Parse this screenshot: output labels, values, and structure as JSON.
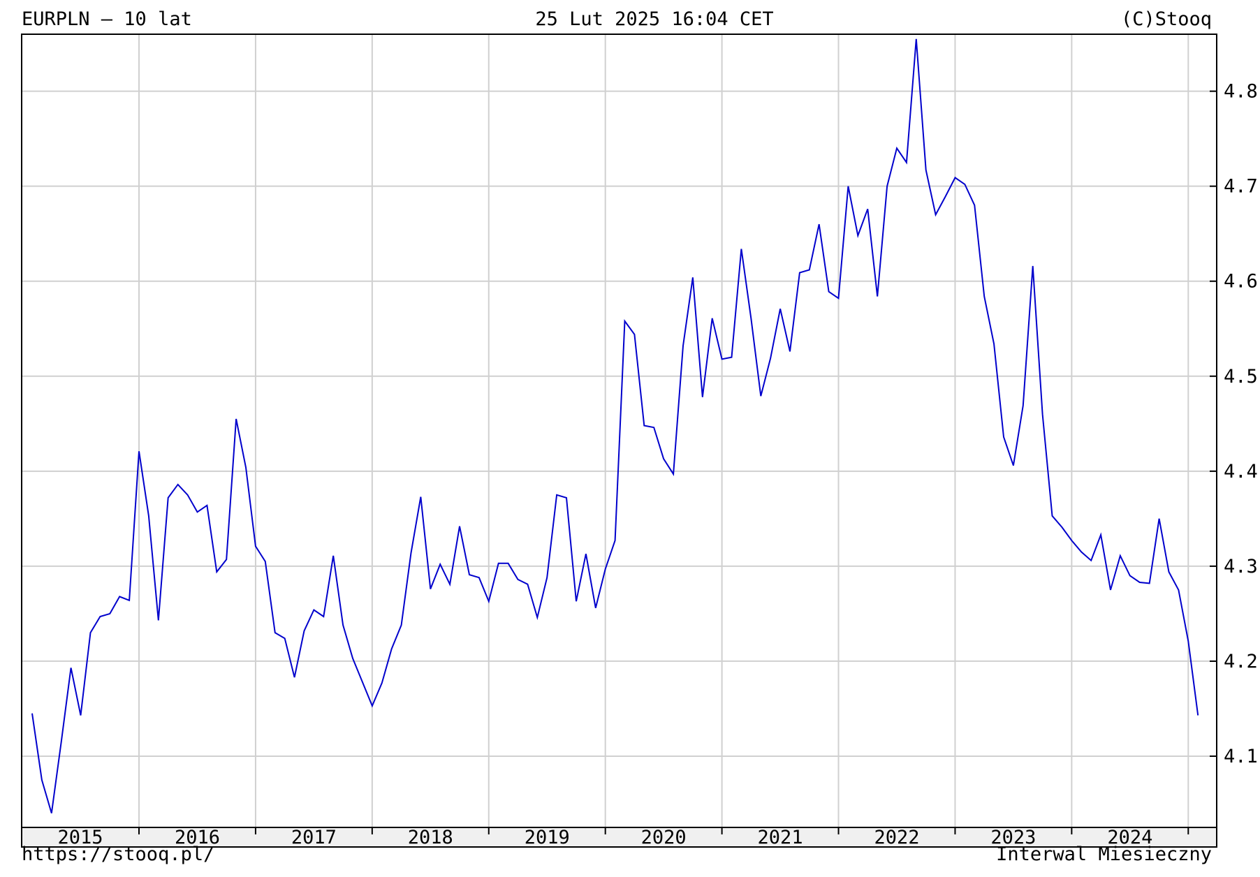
{
  "header": {
    "left": "EURPLN – 10 lat",
    "center": "25 Lut 2025 16:04 CET",
    "right": "(C)Stooq"
  },
  "footer": {
    "left": "https://stooq.pl/",
    "right": "Interwal Miesieczny"
  },
  "colors": {
    "line": "#0000cc",
    "grid": "#d0d0d0",
    "frame": "#000000",
    "xaxis_band": "#f0f0f0"
  },
  "chart_data": {
    "type": "line",
    "title": "EURPLN – 10 lat",
    "xlabel": "",
    "ylabel": "",
    "ylim": [
      4.025,
      4.86
    ],
    "y_ticks": [
      "4.1",
      "4.2",
      "4.3",
      "4.4",
      "4.5",
      "4.6",
      "4.7",
      "4.8"
    ],
    "x_ticks": [
      "2015",
      "2016",
      "2017",
      "2018",
      "2019",
      "2020",
      "2021",
      "2022",
      "2023",
      "2024"
    ],
    "grid": true,
    "y_axis_side": "right",
    "series": [
      {
        "values": [
          4.145,
          4.075,
          4.04,
          4.115,
          4.193,
          4.143,
          4.23,
          4.247,
          4.25,
          4.268,
          4.264,
          4.421,
          4.353,
          4.243,
          4.372,
          4.386,
          4.375,
          4.357,
          4.364,
          4.294,
          4.307,
          4.455,
          4.404,
          4.321,
          4.305,
          4.23,
          4.224,
          4.183,
          4.232,
          4.254,
          4.247,
          4.311,
          4.238,
          4.203,
          4.178,
          4.153,
          4.177,
          4.213,
          4.238,
          4.314,
          4.373,
          4.276,
          4.302,
          4.281,
          4.342,
          4.291,
          4.288,
          4.263,
          4.303,
          4.303,
          4.286,
          4.281,
          4.246,
          4.288,
          4.375,
          4.372,
          4.263,
          4.313,
          4.256,
          4.297,
          4.327,
          4.558,
          4.544,
          4.448,
          4.446,
          4.413,
          4.397,
          4.532,
          4.604,
          4.478,
          4.561,
          4.518,
          4.52,
          4.634,
          4.561,
          4.479,
          4.519,
          4.571,
          4.526,
          4.609,
          4.612,
          4.66,
          4.589,
          4.582,
          4.7,
          4.648,
          4.676,
          4.584,
          4.7,
          4.74,
          4.725,
          4.855,
          4.717,
          4.67,
          4.689,
          4.709,
          4.702,
          4.68,
          4.584,
          4.534,
          4.436,
          4.406,
          4.469,
          4.616,
          4.46,
          4.353,
          4.341,
          4.327,
          4.315,
          4.306,
          4.333,
          4.275,
          4.311,
          4.29,
          4.283,
          4.282,
          4.35,
          4.294,
          4.275,
          4.221,
          4.143
        ]
      }
    ]
  }
}
